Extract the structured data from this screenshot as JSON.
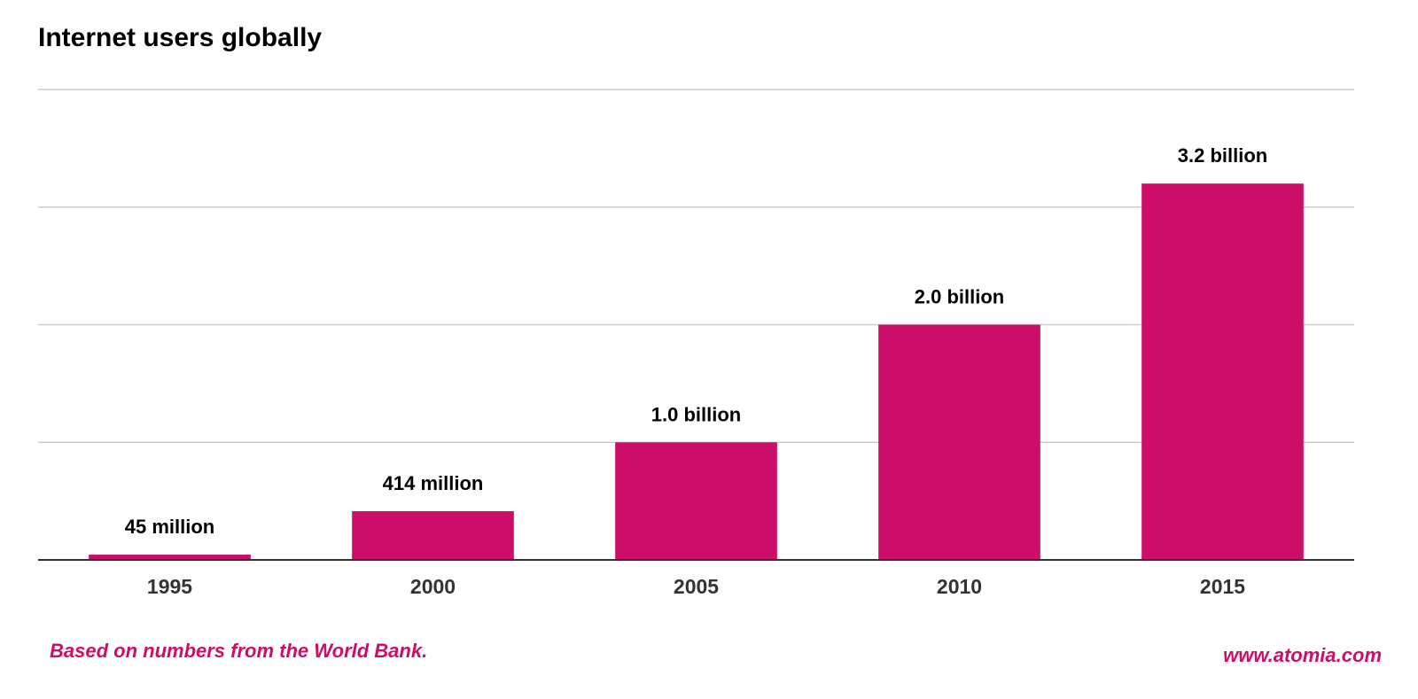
{
  "chart_data": {
    "type": "bar",
    "title": "Internet users globally",
    "xlabel": "",
    "ylabel": "",
    "categories": [
      "1995",
      "2000",
      "2005",
      "2010",
      "2015"
    ],
    "values": [
      45,
      414,
      1000,
      2000,
      3200
    ],
    "data_labels": [
      "45 million",
      "414 million",
      "1.0 billion",
      "2.0 billion",
      "3.2 billion"
    ],
    "ylim": [
      0,
      4000
    ],
    "grid": true,
    "legend": "none",
    "bar_color": "#cc0e69"
  },
  "footer": {
    "source": "Based on numbers from the World Bank.",
    "website": "www.atomia.com"
  },
  "colors": {
    "accent": "#cc0e69",
    "gridline": "#cccccc",
    "axis": "#333333"
  }
}
